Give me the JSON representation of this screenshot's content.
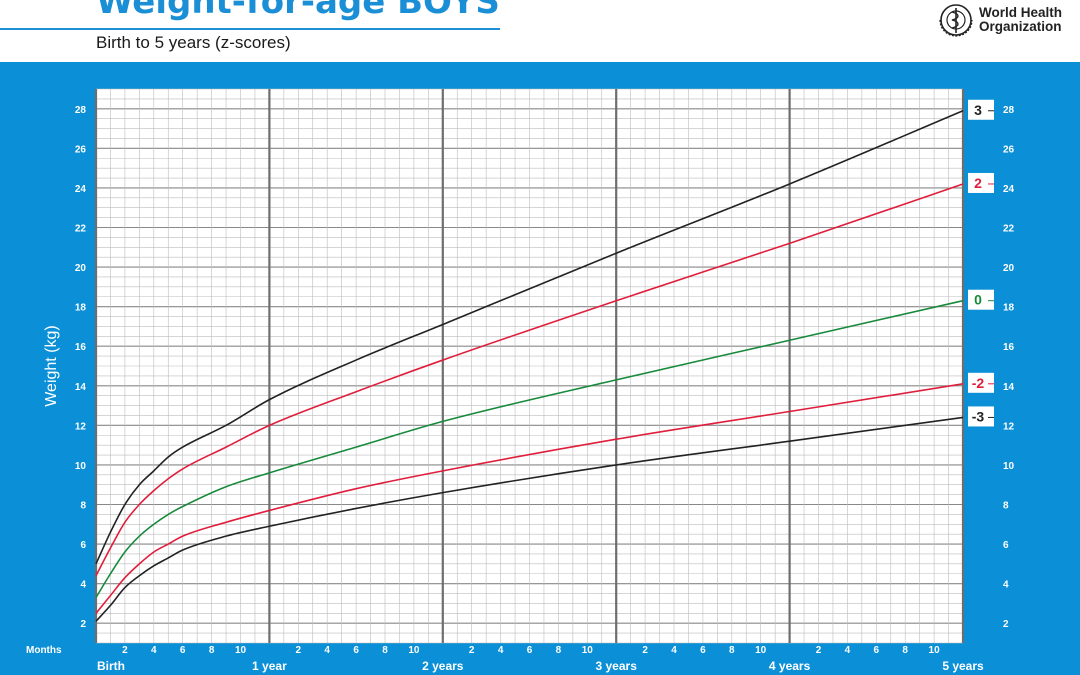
{
  "header": {
    "title": "Weight-for-age BOYS",
    "subtitle": "Birth to 5 years (z-scores)",
    "org_line1": "World Health",
    "org_line2": "Organization"
  },
  "colors": {
    "panel": "#0b8fd7",
    "line_black": "#222222",
    "line_red": "#e01e3c",
    "line_green": "#178a3c",
    "title_blue": "#1a8fd6"
  },
  "chart_data": {
    "type": "line",
    "title": "Weight-for-age BOYS",
    "subtitle": "Birth to 5 years (z-scores)",
    "ylabel": "Weight (kg)",
    "xlabel": "Months",
    "x_unit": "months",
    "xlim": [
      0,
      60
    ],
    "ylim": [
      1,
      29
    ],
    "yticks": [
      2,
      4,
      6,
      8,
      10,
      12,
      14,
      16,
      18,
      20,
      22,
      24,
      26,
      28
    ],
    "month_tick_labels": [
      "2",
      "4",
      "6",
      "8",
      "10"
    ],
    "year_labels": [
      "Birth",
      "1 year",
      "2 years",
      "3 years",
      "4 years",
      "5 years"
    ],
    "grid": true,
    "x": [
      0,
      1,
      2,
      3,
      4,
      5,
      6,
      9,
      12,
      18,
      24,
      36,
      48,
      60
    ],
    "series": [
      {
        "name": "3",
        "color": "#222222",
        "values": [
          5.0,
          6.6,
          8.0,
          9.0,
          9.7,
          10.4,
          10.9,
          12.0,
          13.3,
          15.3,
          17.1,
          20.7,
          24.2,
          27.9
        ]
      },
      {
        "name": "2",
        "color": "#e01e3c",
        "values": [
          4.4,
          5.8,
          7.1,
          8.0,
          8.7,
          9.3,
          9.8,
          10.9,
          12.0,
          13.7,
          15.3,
          18.3,
          21.2,
          24.2
        ]
      },
      {
        "name": "0",
        "color": "#178a3c",
        "values": [
          3.3,
          4.5,
          5.6,
          6.4,
          7.0,
          7.5,
          7.9,
          8.9,
          9.6,
          10.9,
          12.2,
          14.3,
          16.3,
          18.3
        ]
      },
      {
        "name": "-2",
        "color": "#e01e3c",
        "values": [
          2.5,
          3.4,
          4.3,
          5.0,
          5.6,
          6.0,
          6.4,
          7.1,
          7.7,
          8.8,
          9.7,
          11.3,
          12.7,
          14.1
        ]
      },
      {
        "name": "-3",
        "color": "#222222",
        "values": [
          2.1,
          2.9,
          3.8,
          4.4,
          4.9,
          5.3,
          5.7,
          6.4,
          6.9,
          7.8,
          8.6,
          10.0,
          11.2,
          12.4
        ]
      }
    ]
  }
}
